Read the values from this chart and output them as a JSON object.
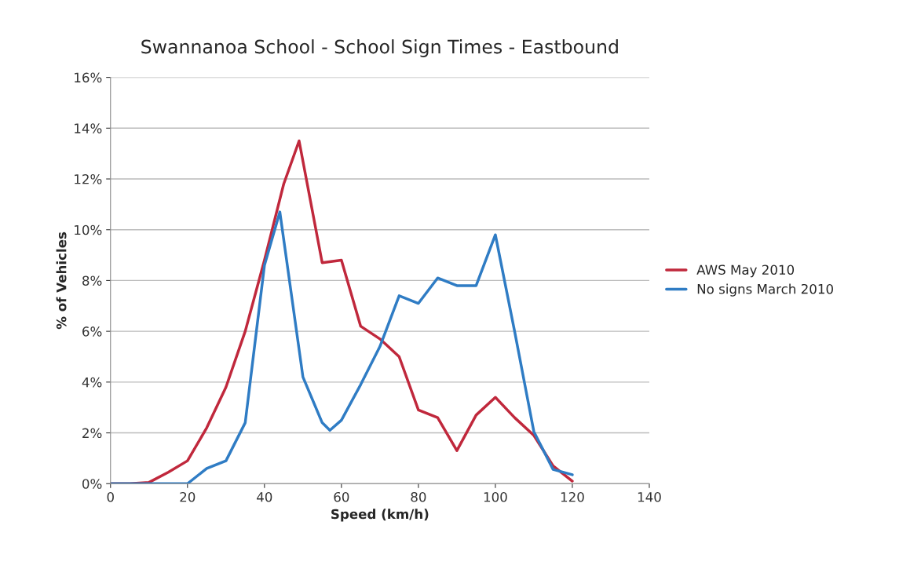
{
  "chart_data": {
    "type": "line",
    "title": "Swannanoa School - School Sign Times - Eastbound",
    "xlabel": "Speed (km/h)",
    "ylabel": "% of Vehicles",
    "xlim": [
      0,
      140
    ],
    "xticks": [
      0,
      20,
      40,
      60,
      80,
      100,
      120,
      140
    ],
    "ylim": [
      0,
      16
    ],
    "yticks": [
      {
        "value": 0,
        "label": "0%"
      },
      {
        "value": 2,
        "label": "2%"
      },
      {
        "value": 4,
        "label": "4%"
      },
      {
        "value": 6,
        "label": "6%"
      },
      {
        "value": 8,
        "label": "8%"
      },
      {
        "value": 10,
        "label": "10%"
      },
      {
        "value": 12,
        "label": "12%"
      },
      {
        "value": 14,
        "label": "14%"
      },
      {
        "value": 16,
        "label": "16%"
      }
    ],
    "grid": "y",
    "legend": "right",
    "marker": "none",
    "line_style": "solid",
    "series": [
      {
        "name": "AWS May 2010",
        "color": "#c0283c",
        "x": [
          0,
          5,
          10,
          15,
          20,
          25,
          30,
          35,
          40,
          45,
          49,
          55,
          60,
          65,
          70,
          75,
          80,
          85,
          90,
          95,
          100,
          105,
          110,
          115,
          120
        ],
        "values": [
          0,
          0,
          0.05,
          0.45,
          0.9,
          2.2,
          3.8,
          6.0,
          8.8,
          11.8,
          13.5,
          8.7,
          8.8,
          6.2,
          5.7,
          5.0,
          2.9,
          2.6,
          1.3,
          2.7,
          3.4,
          2.6,
          1.9,
          0.7,
          0.1
        ]
      },
      {
        "name": "No signs March 2010",
        "color": "#2f7cc4",
        "x": [
          0,
          5,
          10,
          15,
          20,
          25,
          30,
          35,
          40,
          44,
          50,
          55,
          57,
          60,
          65,
          70,
          75,
          80,
          85,
          90,
          95,
          100,
          105,
          110,
          115,
          120
        ],
        "values": [
          0,
          0,
          0,
          0,
          0,
          0.6,
          0.9,
          2.4,
          8.6,
          10.7,
          4.2,
          2.4,
          2.1,
          2.5,
          3.9,
          5.4,
          7.4,
          7.1,
          8.1,
          7.8,
          7.8,
          9.8,
          6.0,
          2.05,
          0.56,
          0.35
        ]
      }
    ]
  }
}
